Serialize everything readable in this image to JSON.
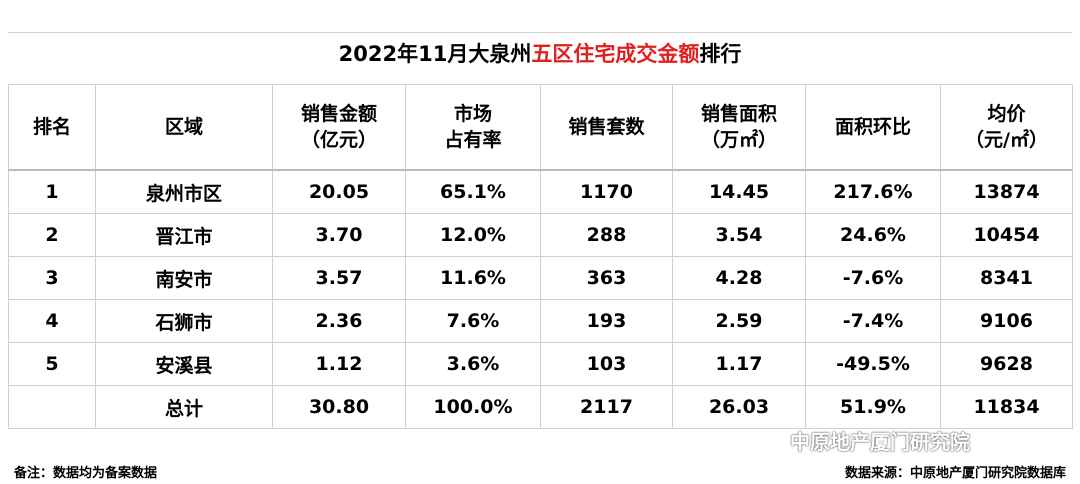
{
  "header": {
    "title_parts": [
      "2022年11月大泉州",
      "五区住宅成交金额",
      "排行"
    ]
  },
  "table": {
    "columns": [
      [
        "排名"
      ],
      [
        "区域"
      ],
      [
        "销售金额",
        "（亿元）"
      ],
      [
        "市场",
        "占有率"
      ],
      [
        "销售套数"
      ],
      [
        "销售面积",
        "（万㎡）"
      ],
      [
        "面积环比"
      ],
      [
        "均价",
        "（元/㎡）"
      ]
    ],
    "rows": [
      [
        "1",
        "泉州市区",
        "20.05",
        "65.1%",
        "1170",
        "14.45",
        "217.6%",
        "13874"
      ],
      [
        "2",
        "晋江市",
        "3.70",
        "12.0%",
        "288",
        "3.54",
        "24.6%",
        "10454"
      ],
      [
        "3",
        "南安市",
        "3.57",
        "11.6%",
        "363",
        "4.28",
        "-7.6%",
        "8341"
      ],
      [
        "4",
        "石狮市",
        "2.36",
        "7.6%",
        "193",
        "2.59",
        "-7.4%",
        "9106"
      ],
      [
        "5",
        "安溪县",
        "1.12",
        "3.6%",
        "103",
        "1.17",
        "-49.5%",
        "9628"
      ]
    ],
    "total": {
      "label": "总计",
      "values": [
        "30.80",
        "100.0%",
        "2117",
        "26.03",
        "51.9%",
        "11834"
      ]
    }
  },
  "footer": {
    "note": "备注：数据均为备案数据",
    "source": "数据来源：中原地产厦门研究院数据库"
  },
  "watermark": "中原地产厦门研究院"
}
